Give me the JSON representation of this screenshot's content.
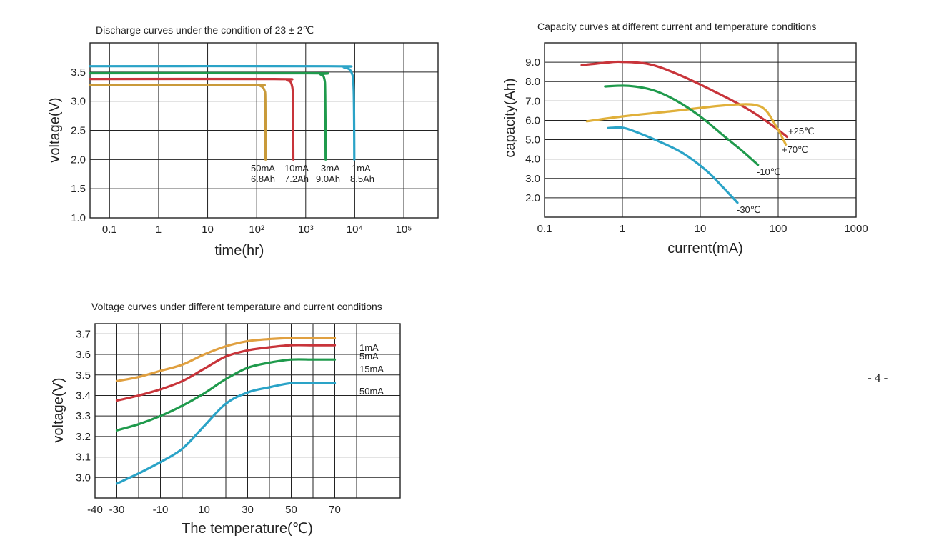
{
  "page_number": "- 4 -",
  "chart_data": [
    {
      "id": "discharge",
      "type": "line",
      "title": "Discharge curves under the condition of 23 ± 2℃",
      "xlabel": "time(hr)",
      "ylabel": "voltage(V)",
      "xscale": "log",
      "xlim": [
        0.04,
        500000
      ],
      "ylim": [
        1.0,
        4.0
      ],
      "grid": true,
      "xticks": [
        {
          "v": 0.1,
          "label": "0.1"
        },
        {
          "v": 1,
          "label": "1"
        },
        {
          "v": 10,
          "label": "10"
        },
        {
          "v": 100,
          "label": "10²"
        },
        {
          "v": 1000,
          "label": "10³"
        },
        {
          "v": 10000,
          "label": "10⁴"
        },
        {
          "v": 100000,
          "label": "10⁵"
        }
      ],
      "yticks": [
        {
          "v": 1.0,
          "label": "1.0"
        },
        {
          "v": 1.5,
          "label": "1.5"
        },
        {
          "v": 2.0,
          "label": "2.0"
        },
        {
          "v": 2.5,
          "label": "2.5"
        },
        {
          "v": 3.0,
          "label": "3.0"
        },
        {
          "v": 3.5,
          "label": "3.5"
        }
      ],
      "series": [
        {
          "name": "1mA",
          "capacity": "8.5Ah",
          "color": "#2aa3c7",
          "points": [
            [
              0.04,
              3.6
            ],
            [
              3000,
              3.6
            ],
            [
              6000,
              3.58
            ],
            [
              8500,
              3.5
            ],
            [
              9500,
              3.2
            ],
            [
              9800,
              2.0
            ]
          ]
        },
        {
          "name": "3mA",
          "capacity": "9.0Ah",
          "color": "#1f9a4c",
          "points": [
            [
              0.04,
              3.48
            ],
            [
              1100,
              3.48
            ],
            [
              2000,
              3.46
            ],
            [
              2400,
              3.38
            ],
            [
              2500,
              3.1
            ],
            [
              2550,
              2.0
            ]
          ]
        },
        {
          "name": "10mA",
          "capacity": "7.2Ah",
          "color": "#c8343a",
          "points": [
            [
              0.04,
              3.38
            ],
            [
              230,
              3.38
            ],
            [
              420,
              3.36
            ],
            [
              520,
              3.28
            ],
            [
              550,
              3.0
            ],
            [
              560,
              2.0
            ]
          ]
        },
        {
          "name": "50mA",
          "capacity": "6.8Ah",
          "color": "#c99a3a",
          "points": [
            [
              0.04,
              3.28
            ],
            [
              70,
              3.28
            ],
            [
              120,
              3.26
            ],
            [
              145,
              3.18
            ],
            [
              150,
              3.0
            ],
            [
              152,
              2.0
            ]
          ]
        }
      ],
      "annotations": [
        {
          "current": "50mA",
          "capacity": "6.8Ah"
        },
        {
          "current": "10mA",
          "capacity": "7.2Ah"
        },
        {
          "current": "3mA",
          "capacity": "9.0Ah"
        },
        {
          "current": "1mA",
          "capacity": "8.5Ah"
        }
      ]
    },
    {
      "id": "capacity",
      "type": "line",
      "title": "Capacity curves at different current and temperature conditions",
      "xlabel": "current(mA)",
      "ylabel": "capacity(Ah)",
      "xscale": "log",
      "xlim": [
        0.1,
        1000
      ],
      "ylim": [
        1.0,
        10.0
      ],
      "grid": true,
      "xticks": [
        {
          "v": 0.1,
          "label": "0.1"
        },
        {
          "v": 1,
          "label": "1"
        },
        {
          "v": 10,
          "label": "10"
        },
        {
          "v": 100,
          "label": "100"
        },
        {
          "v": 1000,
          "label": "1000"
        }
      ],
      "yticks": [
        {
          "v": 2,
          "label": "2.0"
        },
        {
          "v": 3,
          "label": "3.0"
        },
        {
          "v": 4,
          "label": "4.0"
        },
        {
          "v": 5,
          "label": "5.0"
        },
        {
          "v": 6,
          "label": "6.0"
        },
        {
          "v": 7,
          "label": "7.0"
        },
        {
          "v": 8,
          "label": "8.0"
        },
        {
          "v": 9,
          "label": "9.0"
        }
      ],
      "series": [
        {
          "name": "+25℃",
          "color": "#c8343a",
          "points": [
            [
              0.3,
              8.85
            ],
            [
              0.7,
              9.0
            ],
            [
              1.0,
              9.02
            ],
            [
              2.2,
              8.9
            ],
            [
              5,
              8.4
            ],
            [
              15,
              7.5
            ],
            [
              40,
              6.6
            ],
            [
              80,
              5.8
            ],
            [
              130,
              5.15
            ]
          ]
        },
        {
          "name": "+70℃",
          "color": "#e0b03a",
          "points": [
            [
              0.35,
              5.95
            ],
            [
              1,
              6.2
            ],
            [
              5,
              6.5
            ],
            [
              15,
              6.72
            ],
            [
              30,
              6.82
            ],
            [
              50,
              6.8
            ],
            [
              70,
              6.5
            ],
            [
              100,
              5.5
            ],
            [
              125,
              4.75
            ]
          ]
        },
        {
          "name": "-10℃",
          "color": "#1f9a4c",
          "points": [
            [
              0.6,
              7.75
            ],
            [
              1.2,
              7.78
            ],
            [
              2.5,
              7.55
            ],
            [
              5,
              7.0
            ],
            [
              10,
              6.2
            ],
            [
              20,
              5.2
            ],
            [
              35,
              4.4
            ],
            [
              55,
              3.7
            ]
          ]
        },
        {
          "name": "-30℃",
          "color": "#2aa3c7",
          "points": [
            [
              0.65,
              5.6
            ],
            [
              1.0,
              5.62
            ],
            [
              1.5,
              5.4
            ],
            [
              3,
              4.9
            ],
            [
              6,
              4.3
            ],
            [
              12,
              3.4
            ],
            [
              20,
              2.5
            ],
            [
              30,
              1.75
            ]
          ]
        }
      ],
      "annotations": [
        {
          "label": "+25℃"
        },
        {
          "label": "+70℃"
        },
        {
          "label": "-10℃"
        },
        {
          "label": "-30℃"
        }
      ]
    },
    {
      "id": "voltage_temp",
      "type": "line",
      "title": "Voltage curves under different temperature and current conditions",
      "xlabel": "The temperature(℃)",
      "ylabel": "voltage(V)",
      "xscale": "linear",
      "xlim": [
        -40,
        100
      ],
      "ylim": [
        2.9,
        3.75
      ],
      "grid": true,
      "xticks": [
        {
          "v": -40,
          "label": "-40"
        },
        {
          "v": -30,
          "label": "-30"
        },
        {
          "v": -10,
          "label": "-10"
        },
        {
          "v": 10,
          "label": "10"
        },
        {
          "v": 30,
          "label": "30"
        },
        {
          "v": 50,
          "label": "50"
        },
        {
          "v": 70,
          "label": "70"
        }
      ],
      "xgrid": [
        -20,
        0,
        20,
        40,
        60,
        80
      ],
      "yticks": [
        {
          "v": 3.0,
          "label": "3.0"
        },
        {
          "v": 3.1,
          "label": "3.1"
        },
        {
          "v": 3.2,
          "label": "3.2"
        },
        {
          "v": 3.3,
          "label": "3.3"
        },
        {
          "v": 3.4,
          "label": "3.4"
        },
        {
          "v": 3.5,
          "label": "3.5"
        },
        {
          "v": 3.6,
          "label": "3.6"
        },
        {
          "v": 3.7,
          "label": "3.7"
        }
      ],
      "series": [
        {
          "name": "1mA",
          "color": "#e0a040",
          "points": [
            [
              -30,
              3.47
            ],
            [
              -20,
              3.49
            ],
            [
              -10,
              3.52
            ],
            [
              0,
              3.55
            ],
            [
              10,
              3.6
            ],
            [
              20,
              3.64
            ],
            [
              30,
              3.665
            ],
            [
              40,
              3.675
            ],
            [
              50,
              3.68
            ],
            [
              60,
              3.68
            ],
            [
              70,
              3.68
            ]
          ]
        },
        {
          "name": "5mA",
          "color": "#c8343a",
          "points": [
            [
              -30,
              3.375
            ],
            [
              -20,
              3.4
            ],
            [
              -10,
              3.43
            ],
            [
              0,
              3.47
            ],
            [
              10,
              3.53
            ],
            [
              20,
              3.59
            ],
            [
              30,
              3.62
            ],
            [
              40,
              3.635
            ],
            [
              50,
              3.645
            ],
            [
              60,
              3.645
            ],
            [
              70,
              3.645
            ]
          ]
        },
        {
          "name": "15mA",
          "color": "#1f9a4c",
          "points": [
            [
              -30,
              3.23
            ],
            [
              -20,
              3.26
            ],
            [
              -10,
              3.3
            ],
            [
              0,
              3.35
            ],
            [
              10,
              3.41
            ],
            [
              20,
              3.48
            ],
            [
              30,
              3.535
            ],
            [
              40,
              3.56
            ],
            [
              50,
              3.575
            ],
            [
              60,
              3.575
            ],
            [
              70,
              3.575
            ]
          ]
        },
        {
          "name": "50mA",
          "color": "#2aa3c7",
          "points": [
            [
              -30,
              2.97
            ],
            [
              -20,
              3.02
            ],
            [
              -10,
              3.075
            ],
            [
              0,
              3.14
            ],
            [
              10,
              3.25
            ],
            [
              20,
              3.36
            ],
            [
              30,
              3.415
            ],
            [
              40,
              3.44
            ],
            [
              50,
              3.46
            ],
            [
              60,
              3.46
            ],
            [
              70,
              3.46
            ]
          ]
        }
      ],
      "annotations": [
        {
          "label": "1mA"
        },
        {
          "label": "5mA"
        },
        {
          "label": "15mA"
        },
        {
          "label": "50mA"
        }
      ]
    }
  ]
}
